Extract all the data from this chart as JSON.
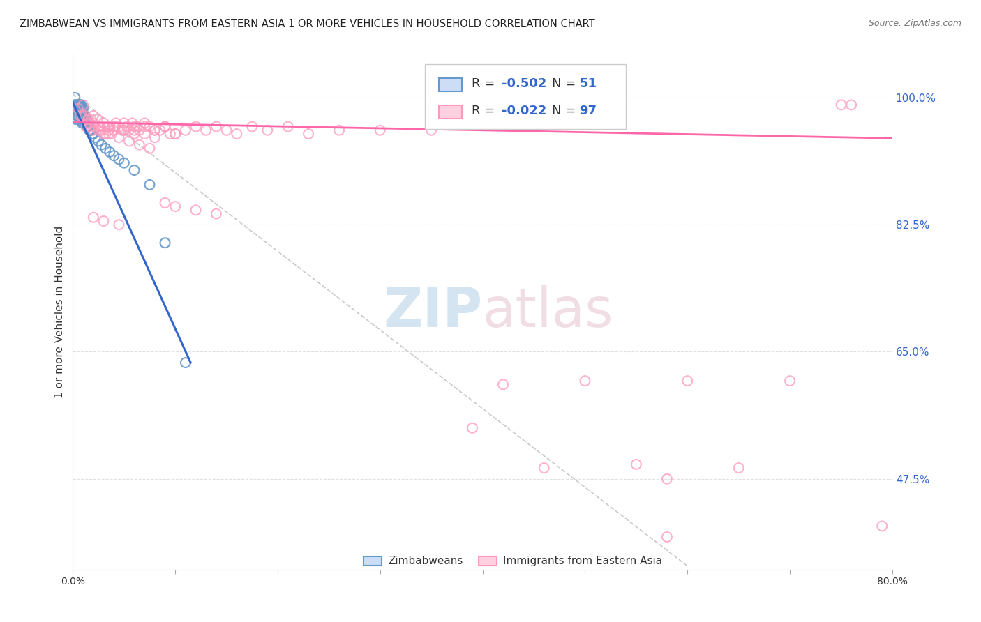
{
  "title": "ZIMBABWEAN VS IMMIGRANTS FROM EASTERN ASIA 1 OR MORE VEHICLES IN HOUSEHOLD CORRELATION CHART",
  "source_text": "Source: ZipAtlas.com",
  "ylabel": "1 or more Vehicles in Household",
  "ytick_labels": [
    "100.0%",
    "82.5%",
    "65.0%",
    "47.5%"
  ],
  "ytick_values": [
    1.0,
    0.825,
    0.65,
    0.475
  ],
  "legend_label1": "Zimbabweans",
  "legend_label2": "Immigrants from Eastern Asia",
  "blue_color": "#6699CC",
  "pink_color": "#FF99BB",
  "blue_trend_color": "#3366CC",
  "pink_trend_color": "#FF66AA",
  "watermark_color_zip": "#B8D4E8",
  "watermark_color_atlas": "#E8C8D4",
  "background_color": "#FFFFFF",
  "grid_color": "#DDDDDD",
  "xlabel_range": [
    0.0,
    0.8
  ],
  "ylim": [
    0.35,
    1.06
  ],
  "blue_r": "-0.502",
  "blue_n": "51",
  "pink_r": "-0.022",
  "pink_n": "97",
  "blue_scatter_x": [
    0.001,
    0.002,
    0.002,
    0.003,
    0.003,
    0.003,
    0.004,
    0.004,
    0.004,
    0.005,
    0.005,
    0.005,
    0.006,
    0.006,
    0.006,
    0.007,
    0.007,
    0.007,
    0.008,
    0.008,
    0.008,
    0.009,
    0.009,
    0.009,
    0.01,
    0.01,
    0.01,
    0.011,
    0.011,
    0.012,
    0.012,
    0.013,
    0.014,
    0.015,
    0.016,
    0.017,
    0.018,
    0.019,
    0.02,
    0.022,
    0.025,
    0.028,
    0.032,
    0.036,
    0.04,
    0.045,
    0.05,
    0.06,
    0.075,
    0.09,
    0.11
  ],
  "blue_scatter_y": [
    0.99,
    1.0,
    0.98,
    0.99,
    0.98,
    0.97,
    0.99,
    0.985,
    0.975,
    0.99,
    0.985,
    0.975,
    0.99,
    0.985,
    0.98,
    0.99,
    0.98,
    0.975,
    0.99,
    0.985,
    0.97,
    0.985,
    0.975,
    0.965,
    0.985,
    0.975,
    0.965,
    0.975,
    0.965,
    0.975,
    0.965,
    0.97,
    0.96,
    0.96,
    0.955,
    0.955,
    0.955,
    0.95,
    0.95,
    0.945,
    0.94,
    0.935,
    0.93,
    0.925,
    0.92,
    0.915,
    0.91,
    0.9,
    0.88,
    0.8,
    0.635
  ],
  "pink_scatter_x": [
    0.005,
    0.007,
    0.009,
    0.01,
    0.012,
    0.013,
    0.015,
    0.016,
    0.017,
    0.018,
    0.02,
    0.022,
    0.024,
    0.025,
    0.027,
    0.028,
    0.03,
    0.032,
    0.034,
    0.035,
    0.038,
    0.04,
    0.042,
    0.045,
    0.048,
    0.05,
    0.053,
    0.055,
    0.058,
    0.06,
    0.063,
    0.065,
    0.07,
    0.075,
    0.08,
    0.085,
    0.09,
    0.095,
    0.1,
    0.11,
    0.12,
    0.13,
    0.14,
    0.15,
    0.16,
    0.175,
    0.19,
    0.21,
    0.23,
    0.26,
    0.3,
    0.35,
    0.02,
    0.025,
    0.03,
    0.04,
    0.05,
    0.06,
    0.07,
    0.08,
    0.09,
    0.1,
    0.015,
    0.02,
    0.025,
    0.03,
    0.035,
    0.04,
    0.05,
    0.06,
    0.07,
    0.08,
    0.09,
    0.1,
    0.12,
    0.14,
    0.035,
    0.045,
    0.055,
    0.065,
    0.075,
    0.02,
    0.03,
    0.045,
    0.42,
    0.46,
    0.5,
    0.55,
    0.6,
    0.65,
    0.7,
    0.75,
    0.39,
    0.58,
    0.76,
    0.79,
    0.58
  ],
  "pink_scatter_y": [
    0.985,
    0.975,
    0.975,
    0.99,
    0.975,
    0.96,
    0.97,
    0.965,
    0.96,
    0.97,
    0.965,
    0.96,
    0.97,
    0.955,
    0.96,
    0.955,
    0.965,
    0.95,
    0.96,
    0.96,
    0.95,
    0.955,
    0.965,
    0.96,
    0.955,
    0.965,
    0.96,
    0.955,
    0.965,
    0.955,
    0.96,
    0.955,
    0.965,
    0.96,
    0.955,
    0.955,
    0.96,
    0.95,
    0.95,
    0.955,
    0.96,
    0.955,
    0.96,
    0.955,
    0.95,
    0.96,
    0.955,
    0.96,
    0.95,
    0.955,
    0.955,
    0.955,
    0.975,
    0.96,
    0.96,
    0.96,
    0.955,
    0.96,
    0.95,
    0.955,
    0.96,
    0.95,
    0.97,
    0.955,
    0.96,
    0.95,
    0.955,
    0.96,
    0.955,
    0.95,
    0.96,
    0.945,
    0.855,
    0.85,
    0.845,
    0.84,
    0.95,
    0.945,
    0.94,
    0.935,
    0.93,
    0.835,
    0.83,
    0.825,
    0.605,
    0.49,
    0.61,
    0.495,
    0.61,
    0.49,
    0.61,
    0.99,
    0.545,
    0.475,
    0.99,
    0.41,
    0.395
  ]
}
